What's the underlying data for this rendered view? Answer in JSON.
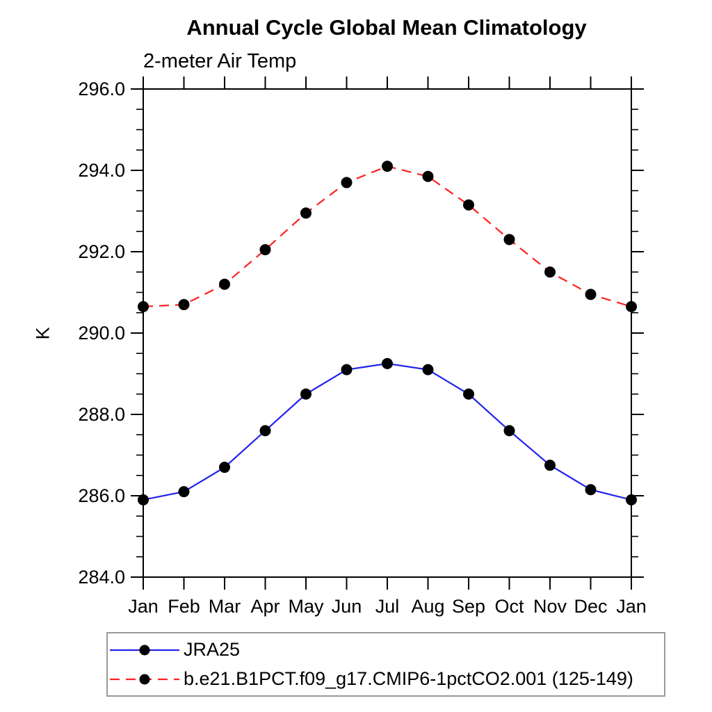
{
  "chart_data": {
    "type": "line",
    "title": "Annual Cycle Global Mean Climatology",
    "subtitle": "2-meter Air Temp",
    "xlabel": "",
    "ylabel": "K",
    "categories": [
      "Jan",
      "Feb",
      "Mar",
      "Apr",
      "May",
      "Jun",
      "Jul",
      "Aug",
      "Sep",
      "Oct",
      "Nov",
      "Dec",
      "Jan"
    ],
    "ylim": [
      284.0,
      296.0
    ],
    "y_major_step": 2.0,
    "y_minor_step": 0.5,
    "y_tick_labels": [
      "284.0",
      "286.0",
      "288.0",
      "290.0",
      "292.0",
      "294.0",
      "296.0"
    ],
    "grid": false,
    "legend_position": "bottom-left",
    "axis_color": "#000000",
    "text_color": "#000000",
    "legend_border_color": "#999999",
    "series": [
      {
        "name": "JRA25",
        "color": "#2222ee",
        "line_style": "solid",
        "marker": "filled-circle",
        "marker_color": "#000000",
        "values": [
          285.9,
          286.1,
          286.7,
          287.6,
          288.5,
          289.1,
          289.25,
          289.1,
          288.5,
          287.6,
          286.75,
          286.15,
          285.9
        ]
      },
      {
        "name": "b.e21.B1PCT.f09_g17.CMIP6-1pctCO2.001 (125-149)",
        "color": "#ff2020",
        "line_style": "dashed",
        "marker": "filled-circle",
        "marker_color": "#000000",
        "values": [
          290.65,
          290.7,
          291.2,
          292.05,
          292.95,
          293.7,
          294.1,
          293.85,
          293.15,
          292.3,
          291.5,
          290.95,
          290.65
        ]
      }
    ]
  }
}
